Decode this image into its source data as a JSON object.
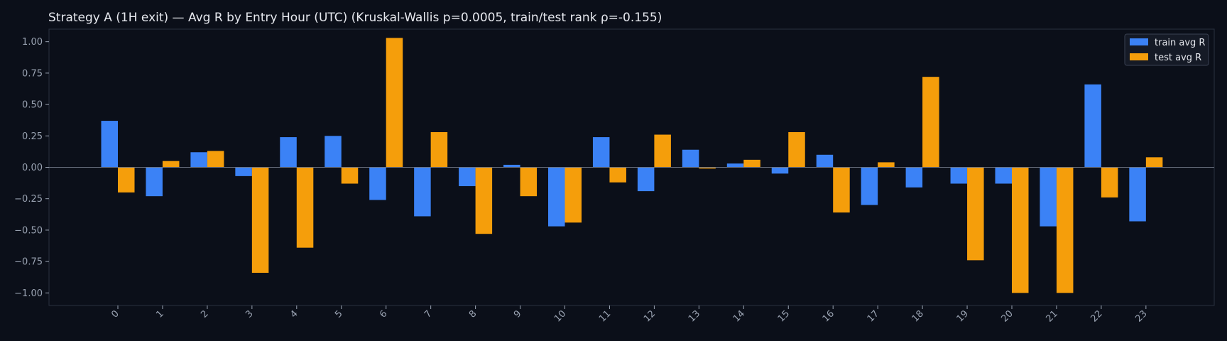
{
  "chart_data": {
    "type": "bar",
    "title": "Strategy A (1H exit) — Avg R by Entry Hour (UTC) (Kruskal-Wallis p=0.0005, train/test rank ρ=-0.155)",
    "xlabel": "",
    "ylabel": "",
    "categories": [
      "0",
      "1",
      "2",
      "3",
      "4",
      "5",
      "6",
      "7",
      "8",
      "9",
      "10",
      "11",
      "12",
      "13",
      "14",
      "15",
      "16",
      "17",
      "18",
      "19",
      "20",
      "21",
      "22",
      "23"
    ],
    "ylim": [
      -1.1,
      1.1
    ],
    "yticks": [
      1.0,
      0.75,
      0.5,
      0.25,
      0.0,
      -0.25,
      -0.5,
      -0.75,
      -1.0
    ],
    "ytick_labels": [
      "1.00",
      "0.75",
      "0.50",
      "0.25",
      "0.00",
      "−0.25",
      "−0.50",
      "−0.75",
      "−1.00"
    ],
    "legend_position": "top-right",
    "grid": false,
    "series": [
      {
        "name": "train avg R",
        "color": "#3b82f6",
        "values": [
          0.37,
          -0.23,
          0.12,
          -0.07,
          0.24,
          0.25,
          -0.26,
          -0.39,
          -0.15,
          0.02,
          -0.47,
          0.24,
          -0.19,
          0.14,
          0.03,
          -0.05,
          0.1,
          -0.3,
          -0.16,
          -0.13,
          -0.13,
          -0.47,
          0.66,
          -0.43
        ]
      },
      {
        "name": "test avg R",
        "color": "#f59e0b",
        "values": [
          -0.2,
          0.05,
          0.13,
          -0.84,
          -0.64,
          -0.13,
          1.03,
          0.28,
          -0.53,
          -0.23,
          -0.44,
          -0.12,
          0.26,
          -0.01,
          0.06,
          0.28,
          -0.36,
          0.04,
          0.72,
          -0.74,
          -1.0,
          -1.0,
          -0.24,
          0.08
        ]
      }
    ],
    "colors": {
      "background": "#0b0f19",
      "axes_edge": "#2a3040",
      "zero_line": "#6b7280",
      "text": "#e6e8ee",
      "ticks": "#9aa3b2",
      "legend_bg": "#151a26",
      "legend_edge": "#3a4152"
    }
  }
}
